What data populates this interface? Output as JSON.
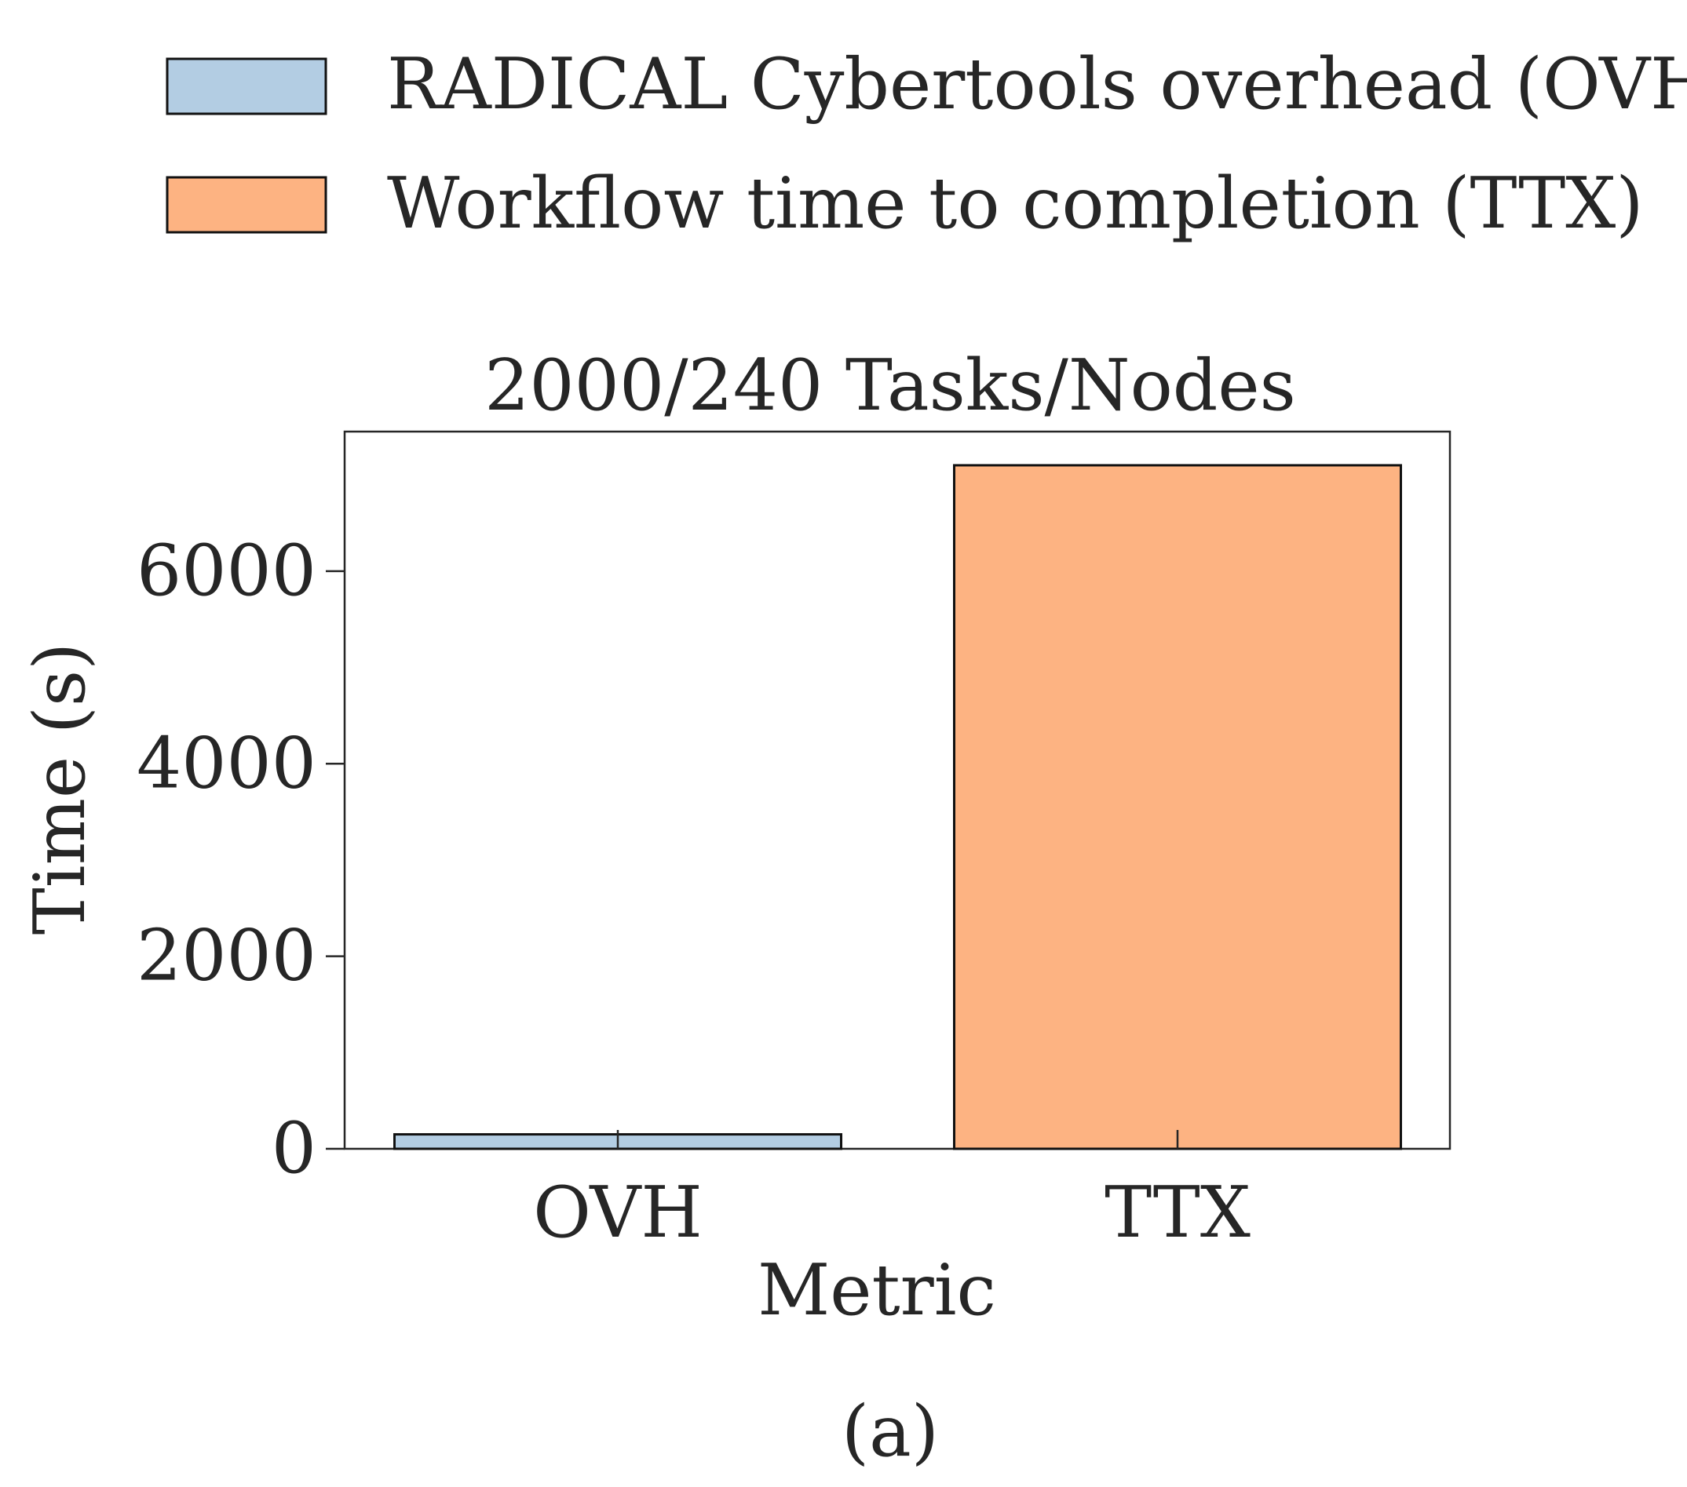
{
  "chart_data": {
    "type": "bar",
    "title": "2000/240 Tasks/Nodes",
    "xlabel": "Metric",
    "ylabel": "Time (s)",
    "categories": [
      "OVH",
      "TTX"
    ],
    "values": [
      150,
      7100
    ],
    "colors": [
      "#b3cde3",
      "#fdb382"
    ],
    "ylim": [
      0,
      7450
    ],
    "yticks": [
      0,
      2000,
      4000,
      6000
    ],
    "grid": false,
    "legend": {
      "placement": "top",
      "entries": [
        {
          "label": "RADICAL Cybertools overhead (OVH)",
          "color": "#b3cde3"
        },
        {
          "label": "Workflow time to completion (TTX)",
          "color": "#fdb382"
        }
      ]
    }
  },
  "caption": "(a)"
}
